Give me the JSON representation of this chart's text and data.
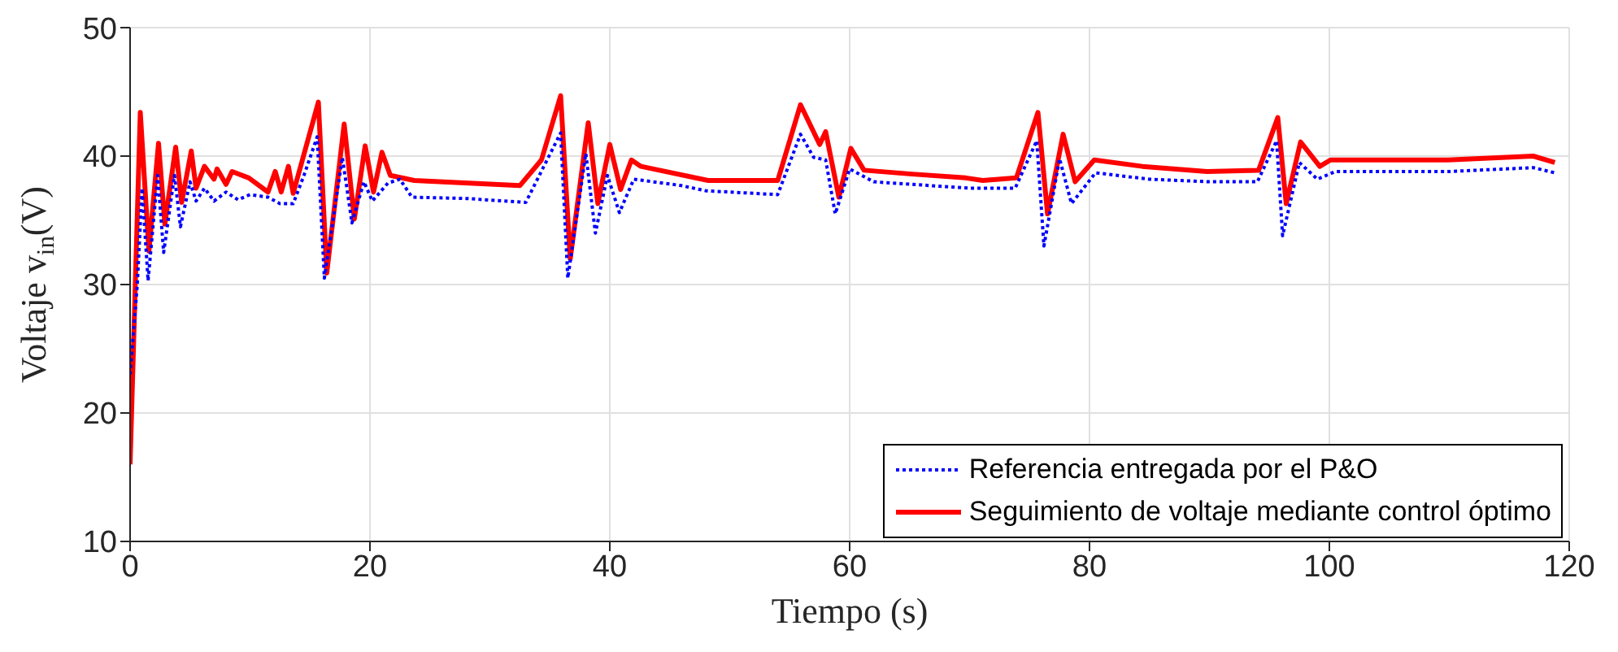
{
  "chart_data": {
    "type": "line",
    "xlabel": "Tiempo (s)",
    "ylabel": "Voltaje v$_{in}$(V)",
    "xlim": [
      0,
      120
    ],
    "xticks": [
      0,
      20,
      40,
      60,
      80,
      100,
      120
    ],
    "ylim": [
      10,
      50
    ],
    "yticks": [
      10,
      20,
      30,
      40,
      50
    ],
    "grid": true,
    "legend": "bottom right",
    "marker": "none",
    "series": [
      {
        "name": "Referencia entregada por el P&O",
        "color": "#0000ff",
        "line_style": "dotted",
        "x": [
          0,
          0.6,
          1.0,
          1.5,
          2.3,
          2.8,
          3.7,
          4.2,
          5.0,
          5.5,
          6.2,
          7,
          8,
          9,
          10,
          11.5,
          12.5,
          13.6,
          14.5,
          15.6,
          16.2,
          17.7,
          18.5,
          19.5,
          20.2,
          21.5,
          22.5,
          23.5,
          28,
          33,
          34.5,
          35.9,
          36.5,
          38,
          38.8,
          39.8,
          40.8,
          42,
          46,
          48,
          54,
          55.9,
          57,
          58,
          58.8,
          60,
          62,
          70,
          73.8,
          75.6,
          76.2,
          77.5,
          78.5,
          80.5,
          85,
          90,
          94,
          95.6,
          96.1,
          97.5,
          99,
          100.5,
          110,
          117,
          118.8
        ],
        "values": [
          23,
          30,
          37.5,
          30.3,
          38.5,
          32.5,
          38.5,
          34.5,
          38,
          36.5,
          37.5,
          36.5,
          37.2,
          36.6,
          37,
          36.8,
          36.3,
          36.3,
          38.5,
          41.5,
          30.5,
          39.9,
          34.8,
          38,
          36.5,
          37.9,
          38.2,
          36.8,
          36.7,
          36.4,
          39.2,
          41.8,
          30.5,
          40.2,
          34,
          38.5,
          35.6,
          38.2,
          37.7,
          37.3,
          37,
          41.7,
          39.9,
          39.7,
          35.5,
          39,
          38,
          37.5,
          37.5,
          41.2,
          33,
          39.8,
          36.3,
          38.7,
          38.2,
          38,
          38,
          41.2,
          33.8,
          39.5,
          38.2,
          38.8,
          38.8,
          39.1,
          38.7
        ]
      },
      {
        "name": "Seguimiento de voltaje mediante control óptimo",
        "color": "#ff0000",
        "line_style": "solid",
        "x": [
          0,
          0.85,
          1.57,
          2.37,
          2.9,
          3.8,
          4.3,
          5.1,
          5.5,
          6.2,
          7,
          7.25,
          8,
          8.5,
          9.9,
          11.5,
          12.1,
          12.6,
          13.2,
          13.6,
          15.7,
          16.4,
          17.85,
          18.7,
          19.6,
          20.3,
          21,
          21.7,
          23.7,
          32.5,
          34.3,
          35.9,
          36.7,
          38.2,
          39,
          40,
          40.9,
          41.8,
          42.6,
          48.2,
          54,
          55.9,
          57.5,
          58,
          59.1,
          60.1,
          61.2,
          65.2,
          69.7,
          71.1,
          73.9,
          75.7,
          76.5,
          77.8,
          78.8,
          80.4,
          84.4,
          89.8,
          94.1,
          95.7,
          96.4,
          97.6,
          99.2,
          100.1,
          109.9,
          117,
          118.8
        ],
        "values": [
          16,
          43.4,
          32.6,
          41,
          34.7,
          40.7,
          36.4,
          40.4,
          37.5,
          39.2,
          38.2,
          39,
          37.8,
          38.8,
          38.3,
          37.2,
          38.8,
          37.2,
          39.2,
          37.1,
          44.2,
          30.9,
          42.5,
          35.1,
          40.8,
          37.2,
          40.3,
          38.5,
          38.1,
          37.7,
          39.7,
          44.7,
          32,
          42.6,
          36.3,
          40.9,
          37.4,
          39.7,
          39.2,
          38.1,
          38.1,
          44,
          40.9,
          41.9,
          36.8,
          40.6,
          38.9,
          38.6,
          38.3,
          38.1,
          38.3,
          43.4,
          35.5,
          41.7,
          38,
          39.7,
          39.2,
          38.8,
          38.9,
          43,
          36.3,
          41.1,
          39.2,
          39.7,
          39.7,
          40,
          39.5
        ]
      }
    ]
  }
}
